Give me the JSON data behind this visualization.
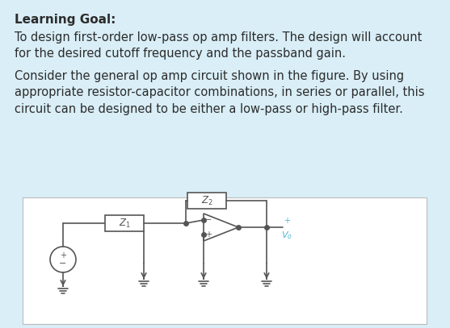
{
  "bg_color": "#d9eef7",
  "panel_bg": "#ffffff",
  "title": "Learning Goal:",
  "title_fontsize": 11,
  "title_bold": true,
  "body_color": "#2c2c2c",
  "text1": "To design first-order low-pass op amp filters. The design will account\nfor the desired cutoff frequency and the passband gain.",
  "text2": "Consider the general op amp circuit shown in the figure. By using\nappropriate resistor-capacitor combinations, in series or parallel, this\ncircuit can be designed to be either a low-pass or high-pass filter.",
  "text_fontsize": 10.5,
  "circuit_color": "#555555",
  "label_color": "#4db8d4",
  "fig_width": 5.57,
  "fig_height": 4.07
}
